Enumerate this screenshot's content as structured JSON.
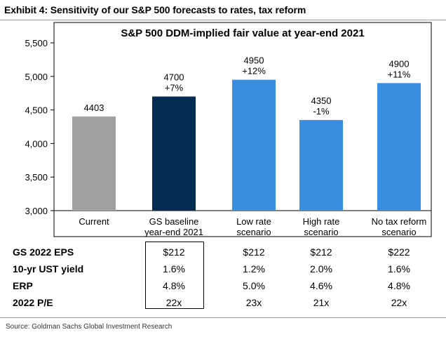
{
  "exhibit_title": "Exhibit 4: Sensitivity of our S&P 500 forecasts to rates, tax reform",
  "chart_data": {
    "type": "bar",
    "title": "S&P 500 DDM-implied fair value at year-end 2021",
    "categories": [
      [
        "Current"
      ],
      [
        "GS baseline",
        "year-end 2021"
      ],
      [
        "Low rate",
        "scenario"
      ],
      [
        "High rate",
        "scenario"
      ],
      [
        "No tax reform",
        "scenario"
      ]
    ],
    "values": [
      4403,
      4700,
      4950,
      4350,
      4900
    ],
    "value_labels": [
      "4403",
      "4700",
      "4950",
      "4350",
      "4900"
    ],
    "change_labels": [
      "",
      "+7%",
      "+12%",
      "-1%",
      "+11%"
    ],
    "bar_colors": [
      "#a0a19f",
      "#042b52",
      "#3a8ee0",
      "#3a8ee0",
      "#3a8ee0"
    ],
    "ylim": [
      3000,
      5500
    ],
    "yticks": [
      3000,
      3500,
      4000,
      4500,
      5000,
      5500
    ],
    "ytick_labels": [
      "3,000",
      "3,500",
      "4,000",
      "4,500",
      "5,000",
      "5,500"
    ],
    "xlabel": "",
    "ylabel": "",
    "grid": false,
    "legend": "none"
  },
  "table": {
    "rows": [
      {
        "label": "GS 2022 EPS",
        "values": [
          "$212",
          "$212",
          "$212",
          "$222"
        ]
      },
      {
        "label": "10-yr UST yield",
        "values": [
          "1.6%",
          "1.2%",
          "2.0%",
          "1.6%"
        ]
      },
      {
        "label": "ERP",
        "values": [
          "4.8%",
          "5.0%",
          "4.6%",
          "4.8%"
        ]
      },
      {
        "label": "2022 P/E",
        "values": [
          "22x",
          "23x",
          "21x",
          "22x"
        ]
      }
    ]
  },
  "source": "Source: Goldman Sachs Global Investment Research"
}
